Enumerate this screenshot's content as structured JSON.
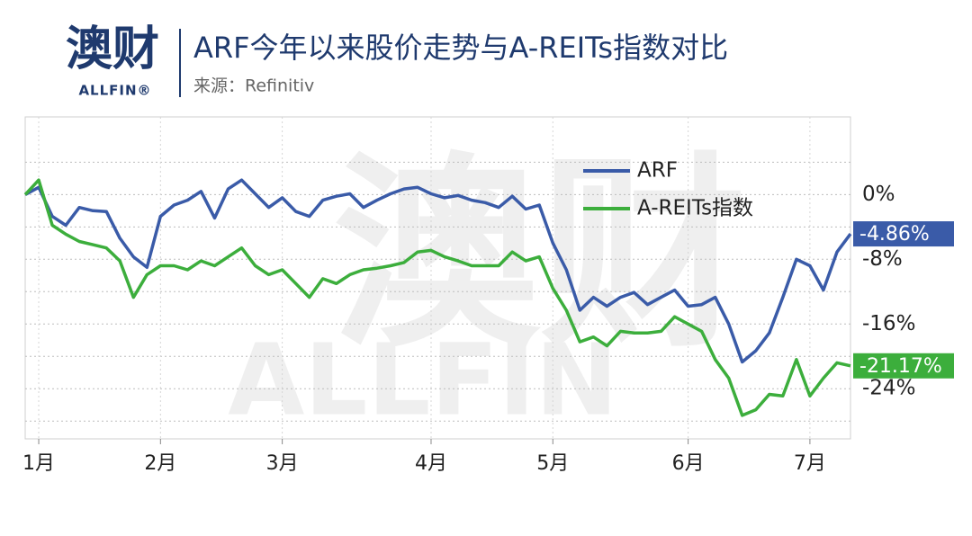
{
  "chart_data": {
    "type": "line",
    "logo": {
      "text": "澳财",
      "sub": "ALLFIN®"
    },
    "watermark": {
      "text": "澳财",
      "sub": "ALLFIN"
    },
    "title": "ARF今年以来股价走势与A-REITs指数对比",
    "subtitle": "来源：Refinitiv",
    "x": [
      0,
      1,
      2,
      3,
      4,
      5,
      6,
      7,
      8,
      9,
      10,
      11,
      12,
      13,
      14,
      15,
      16,
      17,
      18,
      19,
      20,
      21,
      22,
      23,
      24,
      25,
      26,
      27,
      28,
      29,
      30,
      31,
      32,
      33,
      34,
      35,
      36,
      37,
      38,
      39,
      40,
      41,
      42,
      43,
      44,
      45,
      46,
      47,
      48,
      49,
      50,
      51,
      52,
      53,
      54,
      55,
      56,
      57,
      58,
      59,
      60,
      61
    ],
    "xlim": [
      0,
      61
    ],
    "xticks": [
      {
        "value": 1,
        "label": "1月"
      },
      {
        "value": 10,
        "label": "2月"
      },
      {
        "value": 19,
        "label": "3月"
      },
      {
        "value": 30,
        "label": "4月"
      },
      {
        "value": 39,
        "label": "5月"
      },
      {
        "value": 49,
        "label": "6月"
      },
      {
        "value": 58,
        "label": "7月"
      }
    ],
    "ylim": [
      -30.2,
      9.6
    ],
    "yticks": [
      {
        "value": 0,
        "label": "0%"
      },
      {
        "value": -8,
        "label": "-8%"
      },
      {
        "value": -16,
        "label": "-16%"
      },
      {
        "value": -24,
        "label": "-24%"
      }
    ],
    "ygrid": [
      4,
      0,
      -4,
      -8,
      -12,
      -16,
      -20,
      -24,
      -28
    ],
    "grid": true,
    "legend": "top-right",
    "series": [
      {
        "name": "ARF",
        "color": "#3a5ba8",
        "last_value_label": "-4.86%",
        "values": [
          0,
          0.9,
          -2.7,
          -3.8,
          -1.6,
          -2,
          -2.1,
          -5.4,
          -7.7,
          -9,
          -2.7,
          -1.3,
          -0.7,
          0.4,
          -2.9,
          0.7,
          1.8,
          0.1,
          -1.6,
          -0.4,
          -2.1,
          -2.7,
          -0.7,
          -0.2,
          0.1,
          -1.6,
          -0.7,
          0.1,
          0.7,
          0.9,
          0.1,
          -0.4,
          -0.1,
          -0.7,
          -1,
          -1.6,
          -0.2,
          -1.8,
          -1.3,
          -6,
          -9.3,
          -14.3,
          -12.7,
          -13.8,
          -12.7,
          -12.1,
          -13.6,
          -12.7,
          -11.8,
          -13.8,
          -13.6,
          -12.7,
          -16,
          -20.7,
          -19.3,
          -17.1,
          -12.7,
          -8,
          -8.8,
          -11.8,
          -7.1,
          -4.86
        ]
      },
      {
        "name": "A-REITs指数",
        "color": "#3cae3c",
        "last_value_label": "-21.17%",
        "values": [
          0,
          1.8,
          -3.8,
          -4.9,
          -5.8,
          -6.2,
          -6.6,
          -8.2,
          -12.7,
          -9.9,
          -8.8,
          -8.8,
          -9.3,
          -8.2,
          -8.8,
          -7.7,
          -6.6,
          -8.8,
          -9.9,
          -9.3,
          -11,
          -12.7,
          -10.4,
          -11,
          -9.9,
          -9.3,
          -9.1,
          -8.8,
          -8.4,
          -7.1,
          -6.9,
          -7.7,
          -8.2,
          -8.8,
          -8.8,
          -8.8,
          -7.1,
          -8.2,
          -7.7,
          -11.6,
          -14.3,
          -18.2,
          -17.6,
          -18.7,
          -16.9,
          -17.1,
          -17.1,
          -16.9,
          -15.1,
          -16,
          -16.9,
          -20.4,
          -22.7,
          -27.3,
          -26.6,
          -24.7,
          -24.9,
          -20.4,
          -24.9,
          -22.7,
          -20.8,
          -21.17
        ]
      }
    ]
  }
}
